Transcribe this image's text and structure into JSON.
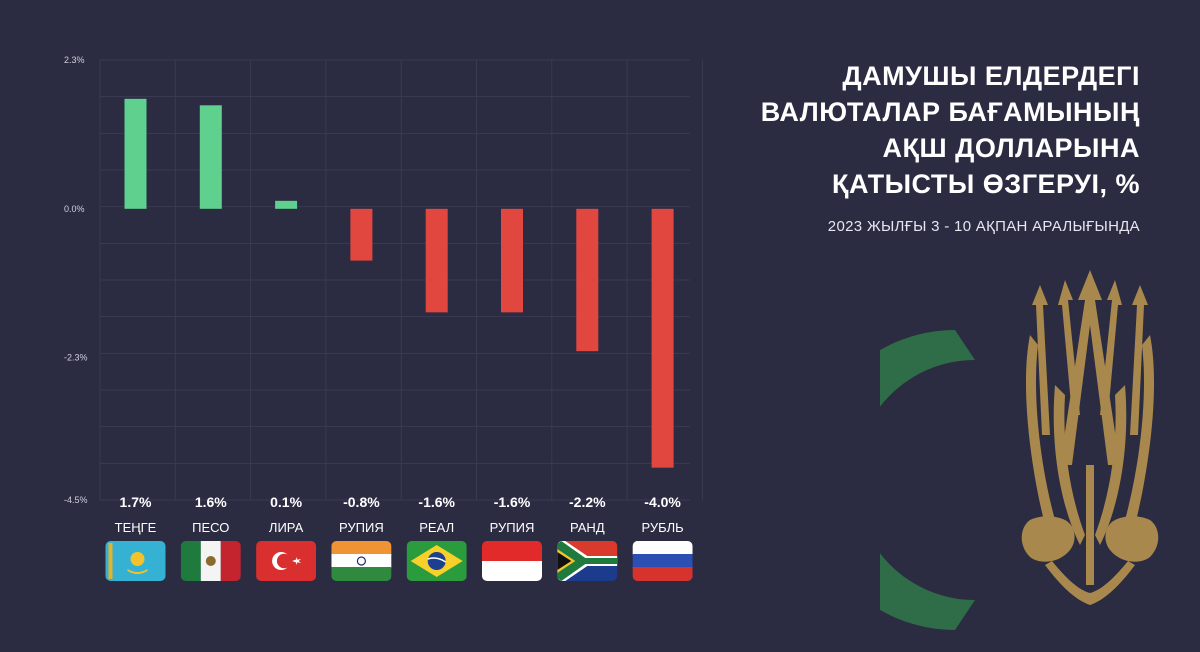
{
  "chart_data": {
    "type": "bar",
    "title": [
      "ДАМУШЫ ЕЛДЕРДЕГІ",
      "ВАЛЮТАЛАР БАҒАМЫНЫҢ",
      "АҚШ ДОЛЛАРЫНА",
      "ҚАТЫСТЫ ӨЗГЕРУІ, %"
    ],
    "subtitle": "2023 ЖЫЛҒЫ 3 - 10 АҚПАН АРАЛЫҒЫНДА",
    "categories": [
      "ТЕҢГЕ",
      "ПЕСО",
      "ЛИРА",
      "РУПИЯ",
      "РЕАЛ",
      "РУПИЯ",
      "РАНД",
      "РУБЛЬ"
    ],
    "values": [
      1.7,
      1.6,
      0.1,
      -0.8,
      -1.6,
      -1.6,
      -2.2,
      -4.0
    ],
    "value_labels": [
      "1.7%",
      "1.6%",
      "0.1%",
      "-0.8%",
      "-1.6%",
      "-1.6%",
      "-2.2%",
      "-4.0%"
    ],
    "yticks": [
      2.3,
      0.0,
      -2.3,
      -4.5
    ],
    "ytick_labels": [
      "2.3%",
      "0.0%",
      "-2.3%",
      "-4.5%"
    ],
    "ylim": [
      -4.5,
      2.3
    ],
    "grid": true,
    "positive_color": "#5fd08e",
    "negative_color": "#e2473f",
    "flags": [
      "kazakhstan-flag-icon",
      "mexico-flag-icon",
      "turkey-flag-icon",
      "india-flag-icon",
      "brazil-flag-icon",
      "indonesia-flag-icon",
      "south-africa-flag-icon",
      "russia-flag-icon"
    ]
  },
  "colors": {
    "background": "#2b2b42",
    "grid": "#3a3a55",
    "emblem_gold": "#a8884c",
    "emblem_green": "#2f6c48"
  }
}
